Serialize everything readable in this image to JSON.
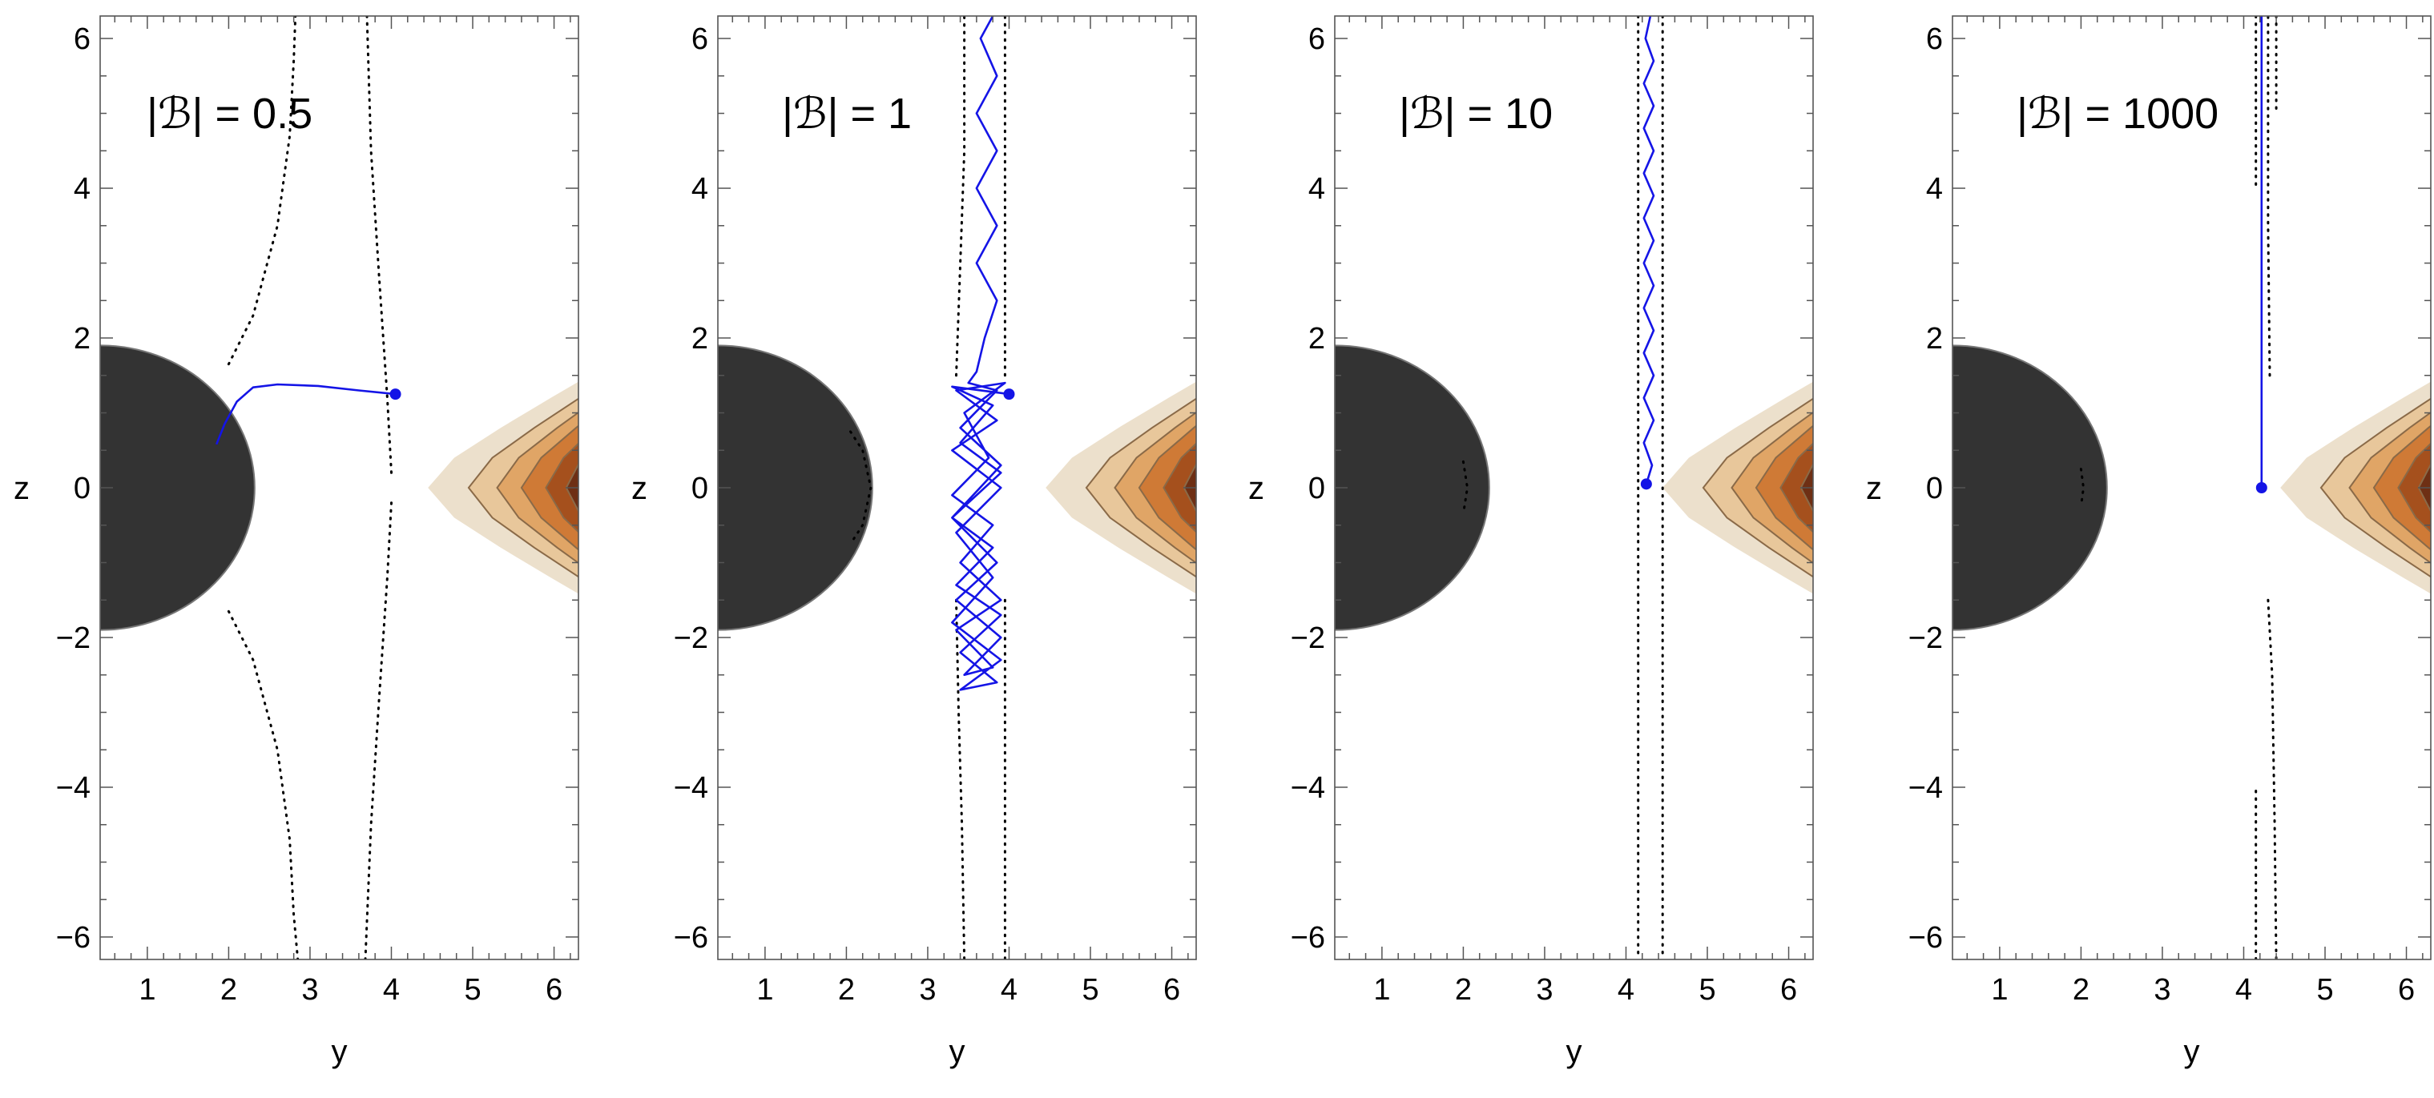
{
  "chart_data": [
    {
      "type": "line",
      "panel_label": "|ℬ| = 0.5",
      "xlabel": "y",
      "ylabel": "z",
      "xlim": [
        0.42,
        6.3
      ],
      "ylim": [
        -6.3,
        6.3
      ],
      "x_ticks": [
        1,
        2,
        3,
        4,
        5,
        6
      ],
      "y_ticks": [
        -6,
        -4,
        -2,
        0,
        2,
        4,
        6
      ],
      "start_point": [
        4.05,
        1.25
      ],
      "series": [
        {
          "style": "solid-blue",
          "points": [
            [
              4.05,
              1.25
            ],
            [
              3.6,
              1.3
            ],
            [
              3.1,
              1.36
            ],
            [
              2.6,
              1.38
            ],
            [
              2.3,
              1.34
            ],
            [
              2.1,
              1.15
            ],
            [
              1.95,
              0.85
            ],
            [
              1.85,
              0.58
            ]
          ]
        }
      ],
      "separatrices": [
        [
          [
            2.0,
            1.65
          ],
          [
            2.3,
            2.3
          ],
          [
            2.6,
            3.5
          ],
          [
            2.75,
            4.7
          ],
          [
            2.8,
            5.7
          ],
          [
            2.82,
            6.3
          ]
        ],
        [
          [
            2.0,
            -1.65
          ],
          [
            2.3,
            -2.3
          ],
          [
            2.6,
            -3.5
          ],
          [
            2.75,
            -4.7
          ],
          [
            2.8,
            -5.7
          ],
          [
            2.85,
            -6.3
          ]
        ],
        [
          [
            4.0,
            0.2
          ],
          [
            3.95,
            1.2
          ],
          [
            3.85,
            2.8
          ],
          [
            3.75,
            4.5
          ],
          [
            3.7,
            6.3
          ]
        ],
        [
          [
            4.0,
            -0.2
          ],
          [
            3.95,
            -1.2
          ],
          [
            3.85,
            -2.8
          ],
          [
            3.75,
            -4.5
          ],
          [
            3.68,
            -6.3
          ]
        ]
      ]
    },
    {
      "type": "line",
      "panel_label": "|ℬ| = 1",
      "xlabel": "y",
      "ylabel": "z",
      "xlim": [
        0.42,
        6.3
      ],
      "ylim": [
        -6.3,
        6.3
      ],
      "x_ticks": [
        1,
        2,
        3,
        4,
        5,
        6
      ],
      "y_ticks": [
        -6,
        -4,
        -2,
        0,
        2,
        4,
        6
      ],
      "start_point": [
        4.0,
        1.25
      ],
      "series": [
        {
          "style": "solid-blue",
          "points": [
            [
              4.0,
              1.25
            ],
            [
              3.3,
              1.35
            ],
            [
              3.8,
              1.1
            ],
            [
              3.4,
              0.6
            ],
            [
              3.9,
              0.2
            ],
            [
              3.3,
              -0.4
            ],
            [
              3.8,
              -0.8
            ],
            [
              3.35,
              -1.3
            ],
            [
              3.9,
              -1.7
            ],
            [
              3.4,
              -2.2
            ],
            [
              3.85,
              -2.6
            ],
            [
              3.4,
              -2.7
            ],
            [
              3.9,
              -2.3
            ],
            [
              3.3,
              -1.8
            ],
            [
              3.8,
              -1.2
            ],
            [
              3.35,
              -0.6
            ],
            [
              3.9,
              0.0
            ],
            [
              3.3,
              0.5
            ],
            [
              3.85,
              0.9
            ],
            [
              3.35,
              1.3
            ],
            [
              3.95,
              1.4
            ],
            [
              3.45,
              1.0
            ],
            [
              3.75,
              0.4
            ],
            [
              3.3,
              -0.1
            ],
            [
              3.8,
              -0.5
            ],
            [
              3.4,
              -1.0
            ],
            [
              3.9,
              -1.5
            ],
            [
              3.35,
              -1.9
            ],
            [
              3.8,
              -2.4
            ],
            [
              3.45,
              -2.5
            ],
            [
              3.9,
              -2.0
            ],
            [
              3.35,
              -1.5
            ],
            [
              3.85,
              -1.0
            ],
            [
              3.3,
              -0.4
            ],
            [
              3.9,
              0.3
            ],
            [
              3.4,
              0.8
            ],
            [
              3.85,
              1.3
            ],
            [
              3.5,
              1.4
            ],
            [
              3.6,
              1.55
            ],
            [
              3.7,
              2.0
            ],
            [
              3.85,
              2.5
            ],
            [
              3.6,
              3.0
            ],
            [
              3.85,
              3.5
            ],
            [
              3.6,
              4.0
            ],
            [
              3.85,
              4.5
            ],
            [
              3.6,
              5.0
            ],
            [
              3.85,
              5.5
            ],
            [
              3.65,
              6.0
            ],
            [
              3.8,
              6.3
            ]
          ]
        }
      ],
      "separatrices": [
        [
          [
            2.05,
            0.75
          ],
          [
            2.2,
            0.5
          ],
          [
            2.3,
            0.0
          ],
          [
            2.2,
            -0.5
          ],
          [
            2.05,
            -0.75
          ]
        ],
        [
          [
            3.35,
            1.5
          ],
          [
            3.4,
            3.0
          ],
          [
            3.45,
            4.5
          ],
          [
            3.45,
            6.3
          ]
        ],
        [
          [
            3.35,
            -1.5
          ],
          [
            3.38,
            -3.0
          ],
          [
            3.42,
            -4.5
          ],
          [
            3.45,
            -6.3
          ]
        ],
        [
          [
            3.95,
            1.5
          ],
          [
            3.95,
            3.0
          ],
          [
            3.95,
            4.5
          ],
          [
            3.95,
            6.3
          ]
        ],
        [
          [
            3.95,
            -1.5
          ],
          [
            3.95,
            -3.0
          ],
          [
            3.95,
            -4.5
          ],
          [
            3.95,
            -6.3
          ]
        ]
      ]
    },
    {
      "type": "line",
      "panel_label": "|ℬ| = 10",
      "xlabel": "y",
      "ylabel": "z",
      "xlim": [
        0.42,
        6.3
      ],
      "ylim": [
        -6.3,
        6.3
      ],
      "x_ticks": [
        1,
        2,
        3,
        4,
        5,
        6
      ],
      "y_ticks": [
        -6,
        -4,
        -2,
        0,
        2,
        4,
        6
      ],
      "start_point": [
        4.25,
        0.05
      ],
      "series": [
        {
          "style": "solid-blue",
          "points": [
            [
              4.25,
              0.05
            ],
            [
              4.32,
              0.3
            ],
            [
              4.22,
              0.6
            ],
            [
              4.34,
              0.9
            ],
            [
              4.22,
              1.2
            ],
            [
              4.34,
              1.5
            ],
            [
              4.22,
              1.8
            ],
            [
              4.34,
              2.1
            ],
            [
              4.22,
              2.4
            ],
            [
              4.34,
              2.7
            ],
            [
              4.22,
              3.0
            ],
            [
              4.34,
              3.3
            ],
            [
              4.22,
              3.6
            ],
            [
              4.34,
              3.9
            ],
            [
              4.22,
              4.2
            ],
            [
              4.34,
              4.5
            ],
            [
              4.22,
              4.8
            ],
            [
              4.34,
              5.1
            ],
            [
              4.22,
              5.4
            ],
            [
              4.34,
              5.7
            ],
            [
              4.24,
              6.0
            ],
            [
              4.3,
              6.3
            ]
          ]
        }
      ],
      "separatrices": [
        [
          [
            2.0,
            0.35
          ],
          [
            2.05,
            0.0
          ],
          [
            2.0,
            -0.35
          ]
        ],
        [
          [
            4.15,
            6.3
          ],
          [
            4.15,
            0.0
          ],
          [
            4.15,
            -6.3
          ]
        ],
        [
          [
            4.45,
            6.3
          ],
          [
            4.45,
            0.0
          ],
          [
            4.45,
            -6.3
          ]
        ]
      ]
    },
    {
      "type": "line",
      "panel_label": "|ℬ| = 1000",
      "xlabel": "y",
      "ylabel": "z",
      "xlim": [
        0.42,
        6.3
      ],
      "ylim": [
        -6.3,
        6.3
      ],
      "x_ticks": [
        1,
        2,
        3,
        4,
        5,
        6
      ],
      "y_ticks": [
        -6,
        -4,
        -2,
        0,
        2,
        4,
        6
      ],
      "start_point": [
        4.22,
        0.0
      ],
      "series": [
        {
          "style": "solid-blue",
          "points": [
            [
              4.22,
              0.0
            ],
            [
              4.22,
              1.5
            ],
            [
              4.22,
              3.0
            ],
            [
              4.22,
              4.5
            ],
            [
              4.22,
              6.3
            ]
          ]
        }
      ],
      "separatrices": [
        [
          [
            2.0,
            0.25
          ],
          [
            2.03,
            0.0
          ],
          [
            2.0,
            -0.25
          ]
        ],
        [
          [
            4.32,
            1.5
          ],
          [
            4.3,
            3.5
          ],
          [
            4.3,
            6.3
          ]
        ],
        [
          [
            4.3,
            -1.5
          ],
          [
            4.35,
            -2.5
          ],
          [
            4.38,
            -4.5
          ],
          [
            4.4,
            -6.3
          ]
        ],
        [
          [
            4.15,
            6.3
          ],
          [
            4.15,
            4.0
          ]
        ],
        [
          [
            4.15,
            -6.3
          ],
          [
            4.15,
            -4.0
          ]
        ],
        [
          [
            4.4,
            6.3
          ],
          [
            4.4,
            5.0
          ]
        ]
      ]
    }
  ],
  "colors": {
    "trajectory": "#1414e6",
    "sphere": "#333333",
    "contour_levels": [
      "#ece0cc",
      "#e8c79b",
      "#e0a566",
      "#cf7a36",
      "#a5501d",
      "#6e2f14"
    ],
    "contour_line": "#8a6a48"
  }
}
